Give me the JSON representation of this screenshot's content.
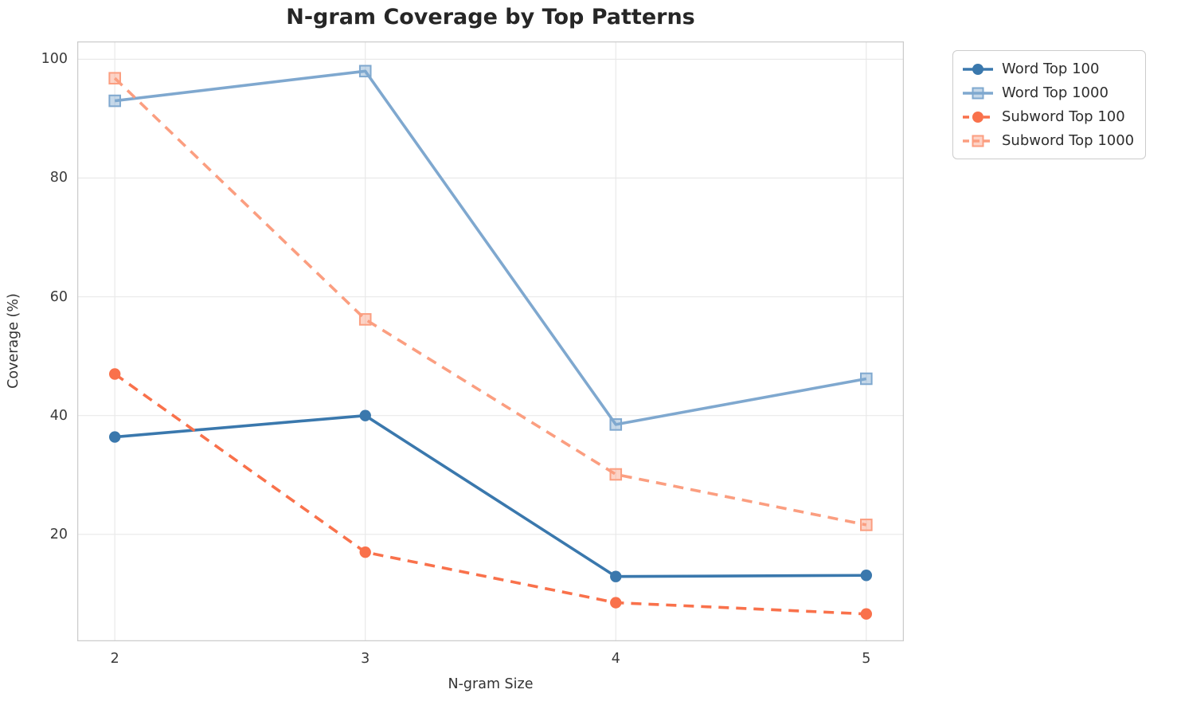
{
  "title": "N-gram Coverage by Top Patterns",
  "chart_data": {
    "type": "line",
    "title": "N-gram Coverage by Top Patterns",
    "xlabel": "N-gram Size",
    "ylabel": "Coverage (%)",
    "x": [
      2,
      3,
      4,
      5
    ],
    "xtick_labels": [
      "2",
      "3",
      "4",
      "5"
    ],
    "ytick_values": [
      20,
      40,
      60,
      80,
      100
    ],
    "xlim": [
      1.85,
      5.15
    ],
    "ylim": [
      2,
      103
    ],
    "grid": true,
    "legend_position": "outside-top-right",
    "series": [
      {
        "name": "Word Top 100",
        "values": [
          36.4,
          40.0,
          12.9,
          13.1
        ],
        "color": "#3a78ad",
        "marker": "circle",
        "line_style": "solid"
      },
      {
        "name": "Word Top 1000",
        "values": [
          93.0,
          98.0,
          38.5,
          46.2
        ],
        "color": "#7fa8cf",
        "marker": "square",
        "line_style": "solid"
      },
      {
        "name": "Subword Top 100",
        "values": [
          47.0,
          17.0,
          8.5,
          6.6
        ],
        "color": "#f9714b",
        "marker": "circle",
        "line_style": "dashed"
      },
      {
        "name": "Subword Top 1000",
        "values": [
          96.8,
          56.2,
          30.1,
          21.6
        ],
        "color": "#fb9e80",
        "marker": "square",
        "line_style": "dashed"
      }
    ],
    "colors": {
      "grid_line": "#e9e9e9",
      "spine": "#cccccc",
      "title_text": "#262626",
      "tick_text": "#3b3b3b",
      "axis_label_text": "#333333",
      "legend_text": "#2e2e2e",
      "background": "#ffffff"
    }
  }
}
